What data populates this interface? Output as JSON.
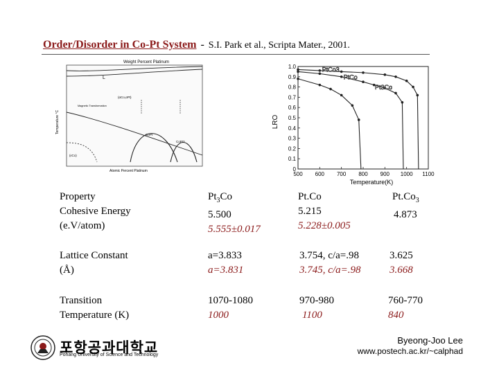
{
  "slide": {
    "title": "Order/Disorder in Co-Pt System",
    "separator": "-",
    "citation": "S.I. Park et al., Scripta Mater., 2001."
  },
  "phase_diagram": {
    "top_axis_label": "Weight Percent Platinum",
    "bottom_axis_label": "Atomic Percent Platinum",
    "y_axis_label": "Temperature °C",
    "region_labels": [
      "L",
      "(αCo,αPt)",
      "Magnetic Transformation",
      "CoPt",
      "CoPt3",
      "(εCo)"
    ]
  },
  "chart_data": {
    "type": "line",
    "xlabel": "Temperature(K)",
    "ylabel": "LRO",
    "xlim": [
      500,
      1100
    ],
    "ylim": [
      0,
      1.0
    ],
    "x_ticks": [
      "500",
      "600",
      "700",
      "800",
      "900",
      "1000",
      "1100"
    ],
    "y_ticks": [
      "0",
      "0.1",
      "0.2",
      "0.3",
      "0.4",
      "0.5",
      "0.6",
      "0.7",
      "0.8",
      "0.9",
      "1.0"
    ],
    "series": [
      {
        "name": "PtCo",
        "x": [
          500,
          600,
          700,
          800,
          850,
          900,
          950,
          980,
          985
        ],
        "y": [
          0.95,
          0.93,
          0.9,
          0.85,
          0.82,
          0.79,
          0.74,
          0.65,
          0
        ]
      },
      {
        "name": "Pt3Co",
        "x": [
          500,
          600,
          700,
          800,
          900,
          950,
          1000,
          1030,
          1050,
          1055
        ],
        "y": [
          0.97,
          0.96,
          0.95,
          0.94,
          0.92,
          0.9,
          0.86,
          0.8,
          0.72,
          0
        ]
      },
      {
        "name": "PtCo3",
        "x": [
          500,
          600,
          650,
          700,
          750,
          780,
          790
        ],
        "y": [
          0.88,
          0.82,
          0.78,
          0.72,
          0.62,
          0.48,
          0
        ]
      }
    ]
  },
  "table": {
    "rows": [
      {
        "property": [
          "Property",
          "Cohesive Energy",
          "(e.V/atom)"
        ],
        "c1": [
          "Pt3Co",
          "5.500"
        ],
        "c1_red": "5.555±0.017",
        "c2": [
          "Pt.Co",
          "5.215"
        ],
        "c2_red": "5.228±0.005",
        "c3": [
          "Pt.Co3",
          "4.873"
        ],
        "c3_red": ""
      },
      {
        "property": [
          "Lattice Constant",
          "(Å)"
        ],
        "c1": [
          "a=3.833"
        ],
        "c1_red": "a=3.831",
        "c2": [
          "3.754, c/a=.98"
        ],
        "c2_red": "3.745, c/a=.98",
        "c3": [
          "3.625"
        ],
        "c3_red": "3.668"
      },
      {
        "property": [
          "Transition",
          "Temperature (K)"
        ],
        "c1": [
          "1070-1080"
        ],
        "c1_red": "1000",
        "c2": [
          "970-980"
        ],
        "c2_red": "1100",
        "c3": [
          "760-770"
        ],
        "c3_red": "840"
      }
    ]
  },
  "footer": {
    "university_korean": "포항공과대학교",
    "university_english": "Pohang University of Science and Technology",
    "author": "Byeong-Joo Lee",
    "website": "www.postech.ac.kr/~calphad"
  },
  "colors": {
    "title": "#8b1a1a",
    "accent_red": "#8b1a1a"
  }
}
